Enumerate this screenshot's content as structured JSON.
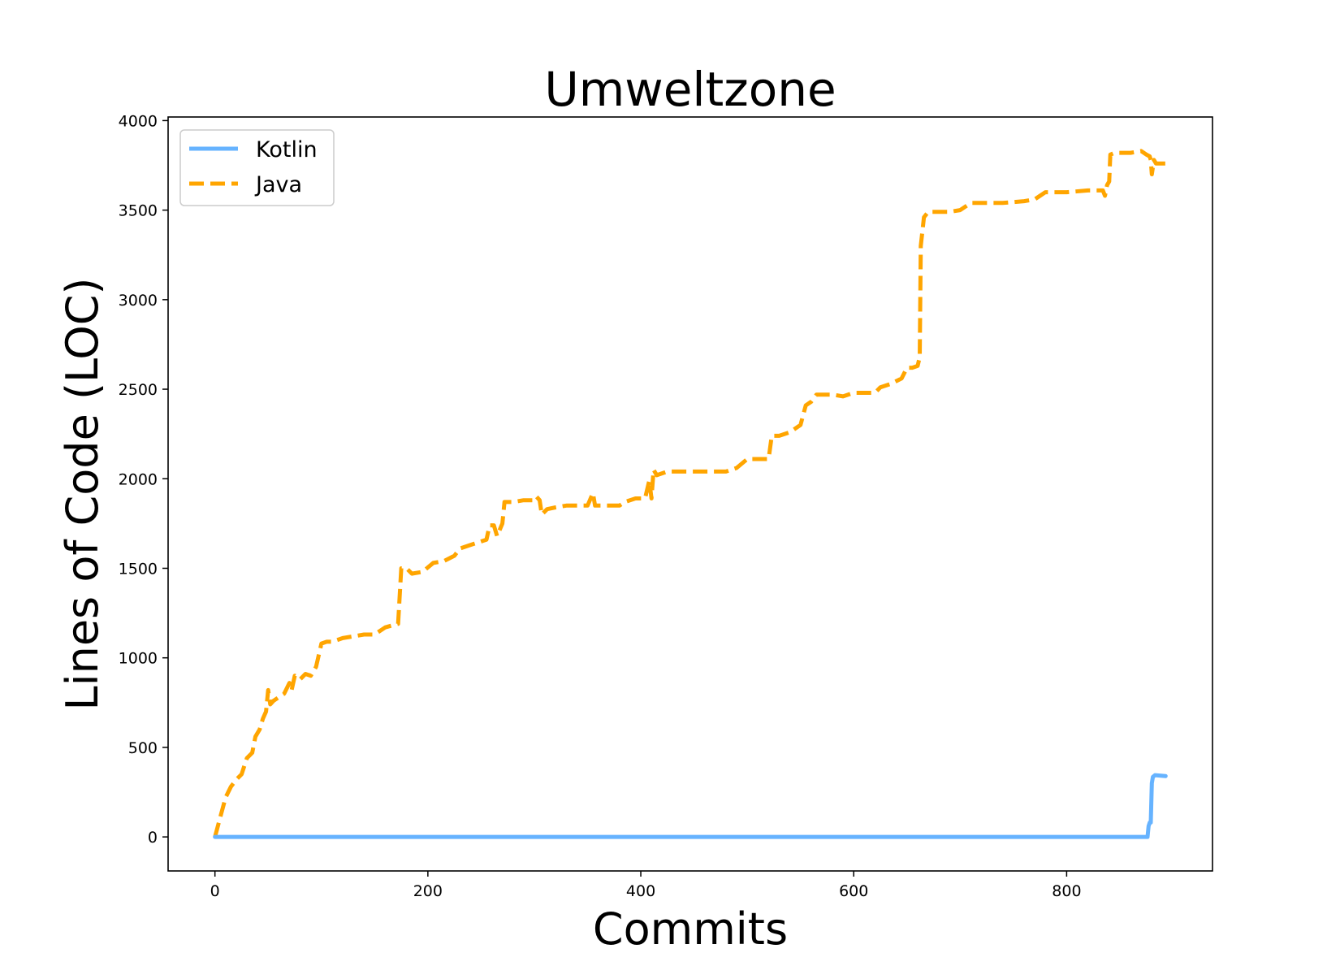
{
  "chart_data": {
    "type": "line",
    "title": "Umweltzone",
    "xlabel": "Commits",
    "ylabel": "Lines of Code (LOC)",
    "xlim": [
      -44,
      937
    ],
    "ylim": [
      -190,
      4020
    ],
    "xticks": [
      0,
      200,
      400,
      600,
      800
    ],
    "yticks": [
      0,
      500,
      1000,
      1500,
      2000,
      2500,
      3000,
      3500,
      4000
    ],
    "grid": false,
    "legend_position": "top-left",
    "series": [
      {
        "name": "Kotlin",
        "color": "#66b3ff",
        "style": "solid",
        "points": [
          [
            0,
            0
          ],
          [
            876,
            0
          ],
          [
            877,
            60
          ],
          [
            878,
            80
          ],
          [
            879,
            80
          ],
          [
            880,
            300
          ],
          [
            881,
            335
          ],
          [
            883,
            345
          ],
          [
            893,
            340
          ]
        ]
      },
      {
        "name": "Java",
        "color": "#ffa500",
        "style": "dashed",
        "points": [
          [
            0,
            0
          ],
          [
            5,
            110
          ],
          [
            10,
            220
          ],
          [
            15,
            280
          ],
          [
            20,
            320
          ],
          [
            25,
            350
          ],
          [
            30,
            440
          ],
          [
            35,
            470
          ],
          [
            38,
            560
          ],
          [
            42,
            600
          ],
          [
            45,
            660
          ],
          [
            48,
            700
          ],
          [
            50,
            820
          ],
          [
            52,
            740
          ],
          [
            55,
            760
          ],
          [
            60,
            780
          ],
          [
            65,
            800
          ],
          [
            70,
            860
          ],
          [
            72,
            820
          ],
          [
            75,
            900
          ],
          [
            80,
            880
          ],
          [
            85,
            910
          ],
          [
            90,
            900
          ],
          [
            95,
            950
          ],
          [
            100,
            1080
          ],
          [
            105,
            1090
          ],
          [
            110,
            1090
          ],
          [
            120,
            1110
          ],
          [
            130,
            1120
          ],
          [
            140,
            1130
          ],
          [
            150,
            1130
          ],
          [
            160,
            1170
          ],
          [
            172,
            1190
          ],
          [
            175,
            1500
          ],
          [
            180,
            1500
          ],
          [
            185,
            1470
          ],
          [
            195,
            1480
          ],
          [
            205,
            1530
          ],
          [
            215,
            1540
          ],
          [
            225,
            1570
          ],
          [
            230,
            1610
          ],
          [
            240,
            1630
          ],
          [
            255,
            1660
          ],
          [
            258,
            1740
          ],
          [
            262,
            1740
          ],
          [
            265,
            1680
          ],
          [
            270,
            1750
          ],
          [
            272,
            1870
          ],
          [
            280,
            1870
          ],
          [
            290,
            1880
          ],
          [
            300,
            1880
          ],
          [
            302,
            1900
          ],
          [
            305,
            1880
          ],
          [
            307,
            1800
          ],
          [
            312,
            1830
          ],
          [
            320,
            1840
          ],
          [
            330,
            1850
          ],
          [
            350,
            1850
          ],
          [
            355,
            1920
          ],
          [
            357,
            1850
          ],
          [
            370,
            1850
          ],
          [
            380,
            1850
          ],
          [
            385,
            1870
          ],
          [
            395,
            1890
          ],
          [
            404,
            1890
          ],
          [
            408,
            1990
          ],
          [
            410,
            1890
          ],
          [
            412,
            2050
          ],
          [
            415,
            2020
          ],
          [
            425,
            2040
          ],
          [
            440,
            2040
          ],
          [
            460,
            2040
          ],
          [
            480,
            2040
          ],
          [
            490,
            2060
          ],
          [
            500,
            2110
          ],
          [
            520,
            2110
          ],
          [
            523,
            2240
          ],
          [
            530,
            2240
          ],
          [
            540,
            2260
          ],
          [
            550,
            2300
          ],
          [
            555,
            2410
          ],
          [
            560,
            2430
          ],
          [
            565,
            2470
          ],
          [
            580,
            2470
          ],
          [
            590,
            2460
          ],
          [
            600,
            2480
          ],
          [
            620,
            2480
          ],
          [
            625,
            2510
          ],
          [
            635,
            2530
          ],
          [
            645,
            2560
          ],
          [
            650,
            2620
          ],
          [
            655,
            2620
          ],
          [
            660,
            2630
          ],
          [
            662,
            2680
          ],
          [
            663,
            3300
          ],
          [
            666,
            3460
          ],
          [
            670,
            3490
          ],
          [
            680,
            3490
          ],
          [
            690,
            3490
          ],
          [
            700,
            3500
          ],
          [
            705,
            3520
          ],
          [
            710,
            3540
          ],
          [
            720,
            3540
          ],
          [
            740,
            3540
          ],
          [
            760,
            3550
          ],
          [
            770,
            3560
          ],
          [
            775,
            3580
          ],
          [
            780,
            3600
          ],
          [
            800,
            3600
          ],
          [
            820,
            3610
          ],
          [
            834,
            3610
          ],
          [
            836,
            3580
          ],
          [
            838,
            3640
          ],
          [
            840,
            3660
          ],
          [
            841,
            3810
          ],
          [
            845,
            3820
          ],
          [
            860,
            3820
          ],
          [
            870,
            3830
          ],
          [
            875,
            3810
          ],
          [
            878,
            3800
          ],
          [
            879,
            3780
          ],
          [
            880,
            3700
          ],
          [
            882,
            3780
          ],
          [
            884,
            3760
          ],
          [
            893,
            3760
          ]
        ]
      }
    ]
  }
}
